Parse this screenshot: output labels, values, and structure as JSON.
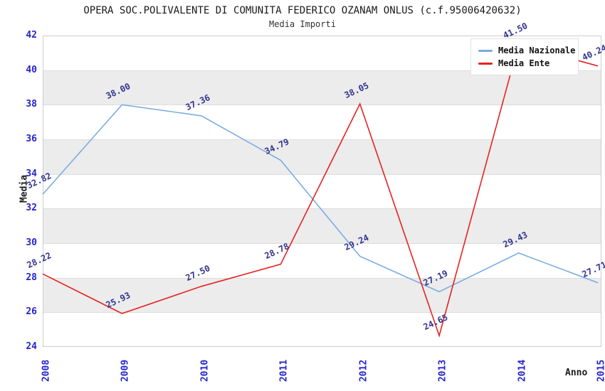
{
  "header": {
    "title": "OPERA SOC.POLIVALENTE DI COMUNITA FEDERICO OZANAM ONLUS (c.f.95006420632)",
    "subtitle": "Media Importi"
  },
  "chart_data": {
    "type": "line",
    "x": [
      2008,
      2009,
      2010,
      2011,
      2012,
      2013,
      2014,
      2015
    ],
    "xlabel": "Anno",
    "ylabel": "Media",
    "ylim": [
      24,
      42
    ],
    "ytick_step": 2,
    "grid": "alternating-horizontal-bands",
    "legend_position": "top-right",
    "series": [
      {
        "name": "Media Nazionale",
        "color": "#7aace2",
        "values": [
          32.82,
          38.0,
          37.36,
          34.79,
          29.24,
          27.19,
          29.43,
          27.71
        ]
      },
      {
        "name": "Media Ente",
        "color": "#e62222",
        "values": [
          28.22,
          25.93,
          27.5,
          28.78,
          38.05,
          24.65,
          41.5,
          40.24
        ]
      }
    ],
    "colors": {
      "tick_label": "#2424cc",
      "point_label": "#33338f",
      "band_gray": "#ececec",
      "gridline": "#dddddd",
      "plot_border": "#cccccc",
      "title_text": "#1a1a1a"
    }
  }
}
